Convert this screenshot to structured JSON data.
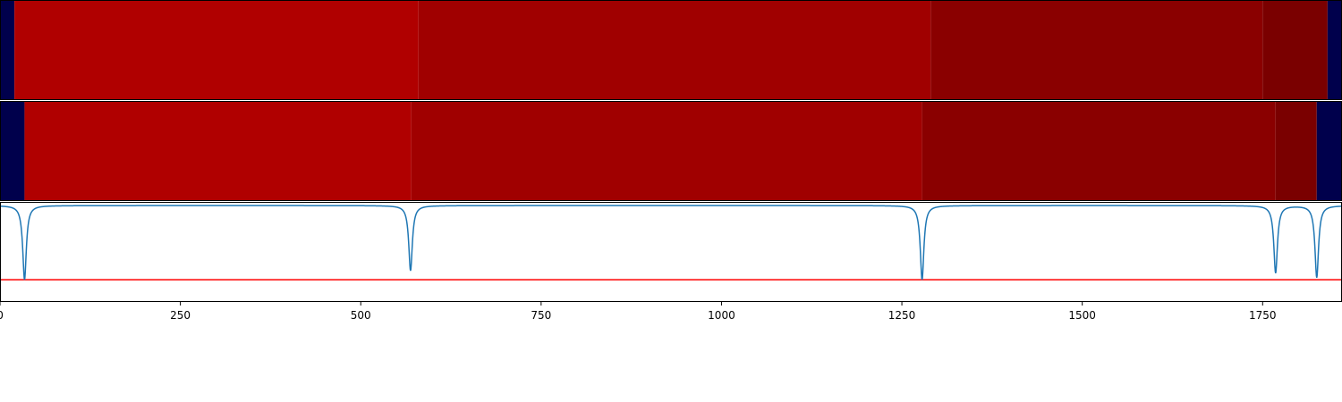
{
  "chart_data": [
    {
      "type": "heatmap",
      "xlim": [
        0,
        1860
      ],
      "segments": [
        {
          "start": 0,
          "end": 20,
          "color": "#00004c"
        },
        {
          "start": 20,
          "end": 580,
          "color": "#b00000"
        },
        {
          "start": 580,
          "end": 1290,
          "color": "#a00000"
        },
        {
          "start": 1290,
          "end": 1750,
          "color": "#8a0000"
        },
        {
          "start": 1750,
          "end": 1840,
          "color": "#7a0000"
        },
        {
          "start": 1840,
          "end": 1860,
          "color": "#00004c"
        }
      ]
    },
    {
      "type": "heatmap",
      "xlim": [
        0,
        1860
      ],
      "segments": [
        {
          "start": 0,
          "end": 34,
          "color": "#00004c"
        },
        {
          "start": 34,
          "end": 570,
          "color": "#b00000"
        },
        {
          "start": 570,
          "end": 1278,
          "color": "#a00000"
        },
        {
          "start": 1278,
          "end": 1768,
          "color": "#8a0000"
        },
        {
          "start": 1768,
          "end": 1825,
          "color": "#7a0000"
        },
        {
          "start": 1825,
          "end": 1860,
          "color": "#00004c"
        }
      ]
    },
    {
      "type": "line",
      "xlim": [
        0,
        1860
      ],
      "ylim": [
        -1.3,
        0.05
      ],
      "x_ticks": [
        0,
        250,
        500,
        750,
        1000,
        1250,
        1500,
        1750
      ],
      "series": [
        {
          "color": "#1f77b4",
          "baseline": 0,
          "dips": [
            {
              "x": 34,
              "depth": 1.0
            },
            {
              "x": 569,
              "depth": 0.88
            },
            {
              "x": 1278,
              "depth": 1.0
            },
            {
              "x": 1768,
              "depth": 0.91
            },
            {
              "x": 1825,
              "depth": 0.97
            }
          ]
        }
      ],
      "threshold": {
        "y": -1.0,
        "color": "#ff0000"
      }
    }
  ]
}
